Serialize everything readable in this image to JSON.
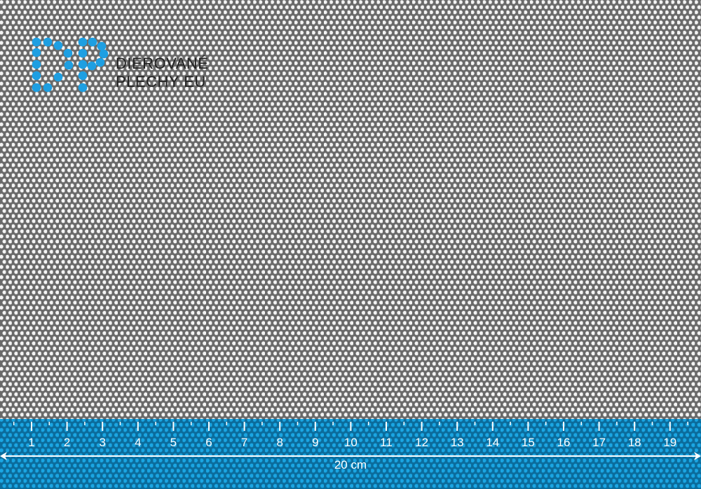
{
  "logo": {
    "line1": "DIEROVANÉ",
    "line2": "PLECHY EU",
    "mark": "DP"
  },
  "ruler": {
    "numbers": [
      "1",
      "2",
      "3",
      "4",
      "5",
      "6",
      "7",
      "8",
      "9",
      "10",
      "11",
      "12",
      "13",
      "14",
      "15",
      "16",
      "17",
      "18",
      "19"
    ],
    "length_label": "20 cm"
  },
  "colors": {
    "sheet": "#6a6a6a",
    "holes": "#f4f4f4",
    "band": "#0b6c9c",
    "band_holes": "#1ba6e3",
    "logo_dots": "#1e9fe2",
    "ruler_ink": "#ffffff"
  }
}
